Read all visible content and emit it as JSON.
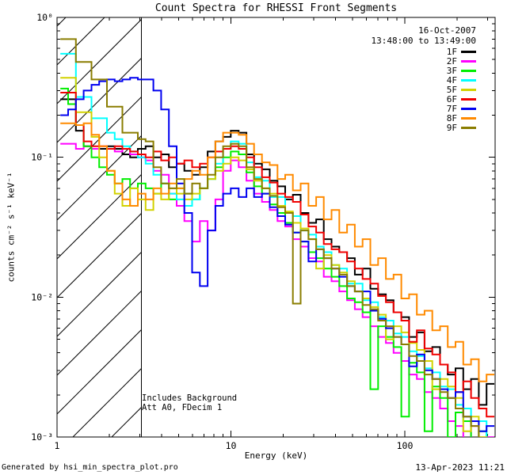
{
  "header": {
    "title": "Count Spectra for RHESSI Front Segments"
  },
  "legend": {
    "date": "16-Oct-2007",
    "time_range": "13:48:00 to 13:49:00",
    "entries": [
      {
        "label": "1F",
        "color": "#000000"
      },
      {
        "label": "2F",
        "color": "#ff00ff"
      },
      {
        "label": "3F",
        "color": "#00ee00"
      },
      {
        "label": "4F",
        "color": "#00ffff"
      },
      {
        "label": "5F",
        "color": "#d2d200"
      },
      {
        "label": "6F",
        "color": "#f00000"
      },
      {
        "label": "7F",
        "color": "#0000f0"
      },
      {
        "label": "8F",
        "color": "#ff8a00"
      },
      {
        "label": "9F",
        "color": "#8a7d00"
      }
    ]
  },
  "annotations": {
    "line1": "Includes Background",
    "line2": "Att A0, FDecim 1"
  },
  "footer": {
    "left": "Generated by hsi_min_spectra_plot.pro",
    "right": "13-Apr-2023 11:21"
  },
  "chart_data": {
    "type": "line",
    "subtype": "histogram-step",
    "title": "Count Spectra for RHESSI Front Segments",
    "xlabel": "Energy (keV)",
    "ylabel": "counts cm⁻² s⁻¹ keV⁻¹",
    "xscale": "log",
    "yscale": "log",
    "xlim": [
      1,
      330
    ],
    "ylim": [
      0.001,
      1
    ],
    "grid": false,
    "legend_position": "top-right-inside",
    "hatched_region": {
      "x_from": 1,
      "x_to": 3.05,
      "style": "diagonal-hatch",
      "boundary_line": 3.05
    },
    "x_ticks": {
      "values": [
        1,
        10,
        100
      ],
      "labels": [
        "1",
        "10",
        "100"
      ]
    },
    "y_ticks": {
      "values": [
        1,
        0.1,
        0.01,
        0.001
      ],
      "labels": [
        "10⁰",
        "10⁻¹",
        "10⁻²",
        "10⁻³"
      ]
    },
    "x": [
      1.1,
      1.22,
      1.35,
      1.5,
      1.66,
      1.84,
      2.04,
      2.26,
      2.5,
      2.77,
      3.07,
      3.4,
      3.77,
      4.18,
      4.63,
      5.13,
      5.68,
      6.3,
      6.98,
      7.73,
      8.57,
      9.49,
      10.5,
      11.7,
      12.9,
      14.3,
      15.9,
      17.6,
      19.5,
      21.6,
      23.9,
      26.5,
      29.4,
      32.5,
      36.0,
      39.9,
      44.2,
      49.0,
      54.3,
      60.2,
      66.7,
      73.9,
      81.9,
      90.7,
      100.5,
      111.4,
      123.4,
      136.7,
      151.5,
      167.8,
      186.0,
      206.1,
      228.4,
      253.1,
      280.4,
      310.7
    ],
    "series": [
      {
        "name": "1F",
        "color": "#000000",
        "values": [
          0.26,
          0.26,
          0.155,
          0.12,
          0.115,
          0.115,
          0.12,
          0.115,
          0.105,
          0.1,
          0.115,
          0.12,
          0.1,
          0.105,
          0.085,
          0.09,
          0.08,
          0.075,
          0.085,
          0.11,
          0.13,
          0.14,
          0.155,
          0.15,
          0.105,
          0.09,
          0.082,
          0.068,
          0.062,
          0.05,
          0.054,
          0.04,
          0.034,
          0.036,
          0.026,
          0.023,
          0.021,
          0.019,
          0.0145,
          0.016,
          0.0115,
          0.0105,
          0.0095,
          0.0078,
          0.0072,
          0.0052,
          0.0056,
          0.0041,
          0.0044,
          0.0033,
          0.0028,
          0.0031,
          0.0022,
          0.0026,
          0.0017,
          0.0024
        ]
      },
      {
        "name": "2F",
        "color": "#ff00ff",
        "values": [
          0.125,
          0.125,
          0.115,
          0.12,
          0.115,
          0.12,
          0.115,
          0.11,
          0.115,
          0.105,
          0.1,
          0.095,
          0.08,
          0.075,
          0.055,
          0.045,
          0.035,
          0.025,
          0.035,
          0.03,
          0.05,
          0.08,
          0.095,
          0.085,
          0.068,
          0.055,
          0.048,
          0.042,
          0.035,
          0.032,
          0.026,
          0.023,
          0.019,
          0.018,
          0.014,
          0.013,
          0.011,
          0.0095,
          0.0082,
          0.0072,
          0.0062,
          0.0052,
          0.0047,
          0.004,
          0.0035,
          0.0028,
          0.0026,
          0.0021,
          0.0019,
          0.0016,
          0.0013,
          0.0012,
          0.00095,
          0.0012,
          0.00085,
          0.001
        ]
      },
      {
        "name": "3F",
        "color": "#00ee00",
        "values": [
          0.31,
          0.24,
          0.17,
          0.12,
          0.1,
          0.085,
          0.075,
          0.065,
          0.07,
          0.06,
          0.065,
          0.06,
          0.055,
          0.065,
          0.05,
          0.06,
          0.055,
          0.05,
          0.06,
          0.07,
          0.085,
          0.1,
          0.11,
          0.105,
          0.078,
          0.062,
          0.055,
          0.046,
          0.04,
          0.034,
          0.029,
          0.025,
          0.021,
          0.019,
          0.016,
          0.014,
          0.012,
          0.0098,
          0.0092,
          0.0078,
          0.0022,
          0.0062,
          0.0052,
          0.0044,
          0.0014,
          0.0034,
          0.0029,
          0.0011,
          0.0023,
          0.0019,
          0.001,
          0.0015,
          0.0013,
          0.00085,
          0.0011,
          0.0009
        ]
      },
      {
        "name": "4F",
        "color": "#00ffff",
        "values": [
          0.55,
          0.55,
          0.27,
          0.27,
          0.19,
          0.19,
          0.15,
          0.135,
          0.12,
          0.11,
          0.1,
          0.09,
          0.075,
          0.065,
          0.055,
          0.05,
          0.045,
          0.05,
          0.06,
          0.07,
          0.09,
          0.115,
          0.13,
          0.125,
          0.092,
          0.072,
          0.068,
          0.052,
          0.052,
          0.04,
          0.038,
          0.03,
          0.028,
          0.023,
          0.021,
          0.017,
          0.016,
          0.0125,
          0.0125,
          0.0095,
          0.0092,
          0.0072,
          0.0068,
          0.0055,
          0.0052,
          0.0041,
          0.0038,
          0.0031,
          0.0029,
          0.0023,
          0.0022,
          0.0017,
          0.0016,
          0.0013,
          0.0013,
          0.00095
        ]
      },
      {
        "name": "5F",
        "color": "#d2d200",
        "values": [
          0.37,
          0.37,
          0.21,
          0.21,
          0.14,
          0.1,
          0.08,
          0.055,
          0.045,
          0.06,
          0.05,
          0.042,
          0.055,
          0.05,
          0.06,
          0.055,
          0.05,
          0.055,
          0.06,
          0.07,
          0.08,
          0.09,
          0.1,
          0.095,
          0.082,
          0.068,
          0.06,
          0.055,
          0.045,
          0.041,
          0.034,
          0.031,
          0.026,
          0.016,
          0.02,
          0.017,
          0.015,
          0.013,
          0.011,
          0.0098,
          0.0085,
          0.0075,
          0.005,
          0.0062,
          0.0056,
          0.0047,
          0.0042,
          0.0035,
          0.0022,
          0.0026,
          0.0023,
          0.0019,
          0.0011,
          0.0014,
          0.001,
          0.00085
        ]
      },
      {
        "name": "6F",
        "color": "#f00000",
        "values": [
          0.29,
          0.29,
          0.17,
          0.13,
          0.12,
          0.12,
          0.115,
          0.12,
          0.115,
          0.11,
          0.105,
          0.1,
          0.11,
          0.095,
          0.1,
          0.09,
          0.095,
          0.085,
          0.09,
          0.1,
          0.11,
          0.115,
          0.12,
          0.115,
          0.1,
          0.085,
          0.072,
          0.066,
          0.055,
          0.052,
          0.048,
          0.039,
          0.032,
          0.029,
          0.024,
          0.022,
          0.021,
          0.018,
          0.016,
          0.0135,
          0.0125,
          0.0102,
          0.0092,
          0.0078,
          0.0068,
          0.0048,
          0.0058,
          0.0043,
          0.0039,
          0.0033,
          0.0029,
          0.0021,
          0.0025,
          0.0019,
          0.0016,
          0.0014
        ]
      },
      {
        "name": "7F",
        "color": "#0000f0",
        "values": [
          0.2,
          0.22,
          0.26,
          0.3,
          0.33,
          0.35,
          0.36,
          0.35,
          0.36,
          0.37,
          0.36,
          0.36,
          0.3,
          0.22,
          0.12,
          0.065,
          0.04,
          0.015,
          0.012,
          0.03,
          0.045,
          0.055,
          0.06,
          0.052,
          0.06,
          0.052,
          0.055,
          0.044,
          0.038,
          0.033,
          0.029,
          0.025,
          0.018,
          0.022,
          0.019,
          0.016,
          0.014,
          0.012,
          0.011,
          0.011,
          0.008,
          0.007,
          0.006,
          0.0052,
          0.0046,
          0.0032,
          0.0039,
          0.003,
          0.0026,
          0.0022,
          0.0019,
          0.0021,
          0.0014,
          0.0013,
          0.0011,
          0.0012
        ]
      },
      {
        "name": "8F",
        "color": "#ff8a00",
        "values": [
          0.175,
          0.175,
          0.17,
          0.175,
          0.145,
          0.12,
          0.08,
          0.065,
          0.05,
          0.045,
          0.055,
          0.05,
          0.06,
          0.055,
          0.065,
          0.06,
          0.07,
          0.08,
          0.075,
          0.1,
          0.13,
          0.15,
          0.15,
          0.145,
          0.125,
          0.105,
          0.092,
          0.088,
          0.07,
          0.075,
          0.058,
          0.065,
          0.045,
          0.052,
          0.036,
          0.042,
          0.029,
          0.033,
          0.023,
          0.026,
          0.017,
          0.019,
          0.0135,
          0.0145,
          0.0098,
          0.0105,
          0.0075,
          0.008,
          0.0058,
          0.0062,
          0.0044,
          0.0048,
          0.0033,
          0.0036,
          0.0025,
          0.0028
        ]
      },
      {
        "name": "9F",
        "color": "#8a7d00",
        "values": [
          0.7,
          0.7,
          0.48,
          0.48,
          0.36,
          0.36,
          0.23,
          0.23,
          0.15,
          0.15,
          0.135,
          0.13,
          0.085,
          0.065,
          0.06,
          0.07,
          0.055,
          0.065,
          0.06,
          0.075,
          0.1,
          0.12,
          0.125,
          0.12,
          0.085,
          0.07,
          0.06,
          0.053,
          0.044,
          0.04,
          0.009,
          0.03,
          0.026,
          0.022,
          0.019,
          0.016,
          0.0145,
          0.012,
          0.011,
          0.0088,
          0.0082,
          0.0068,
          0.0062,
          0.0052,
          0.0046,
          0.0038,
          0.0035,
          0.0028,
          0.0026,
          0.0021,
          0.0019,
          0.0016,
          0.0014,
          0.0012,
          0.00095,
          0.0008
        ]
      }
    ]
  }
}
